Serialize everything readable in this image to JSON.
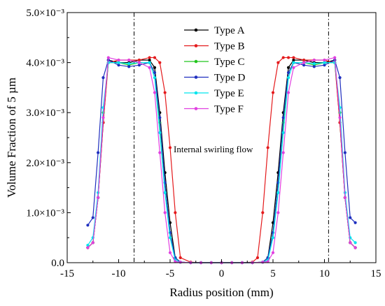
{
  "chart_data": {
    "type": "line",
    "title": "",
    "xlabel": "Radius position (mm)",
    "ylabel": "Volume Fraction of 5 µm",
    "xlim": [
      -15,
      15
    ],
    "ylim": [
      0,
      0.005
    ],
    "x_ticks": [
      -15,
      -10,
      -5,
      0,
      5,
      10,
      15
    ],
    "x_tick_labels": [
      "-15",
      "-10",
      "-5",
      "0",
      "5",
      "10",
      "15"
    ],
    "y_ticks": [
      0,
      0.001,
      0.002,
      0.003,
      0.004,
      0.005
    ],
    "y_tick_labels": [
      "0.0",
      "1.0×10⁻³",
      "2.0×10⁻³",
      "3.0×10⁻³",
      "4.0×10⁻³",
      "5.0×10⁻³"
    ],
    "grid": false,
    "legend_position": "top-center",
    "vlines": [
      -8.5,
      10.4
    ],
    "annotation": "Internal swirling flow",
    "series": [
      {
        "name": "Type A",
        "color": "#000000",
        "x": [
          -13,
          -12.5,
          -12,
          -11.5,
          -11,
          -10,
          -9,
          -8,
          -7,
          -6.5,
          -6,
          -5.5,
          -5,
          -4.5,
          -4,
          -3,
          -2,
          -1,
          0,
          1,
          2,
          3,
          4,
          4.5,
          5,
          5.5,
          6,
          6.5,
          7,
          8,
          9,
          10,
          11,
          11.5,
          12,
          12.5,
          13
        ],
        "y": [
          0.0003,
          0.0004,
          0.0013,
          0.0028,
          0.00405,
          0.004,
          0.004,
          0.00405,
          0.00405,
          0.0039,
          0.003,
          0.0018,
          0.0008,
          0.0001,
          1e-05,
          0,
          0,
          0,
          0,
          0,
          0,
          0,
          1e-05,
          0.0001,
          0.0008,
          0.0018,
          0.003,
          0.0039,
          0.00405,
          0.00405,
          0.004,
          0.004,
          0.00405,
          0.0028,
          0.0013,
          0.0004,
          0.0003
        ]
      },
      {
        "name": "Type B",
        "color": "#e41a1c",
        "x": [
          -13,
          -12.5,
          -12,
          -11.5,
          -11,
          -10,
          -9,
          -8,
          -7,
          -6.5,
          -6,
          -5.5,
          -5,
          -4.5,
          -4,
          -3,
          -2,
          -1,
          0,
          1,
          2,
          3,
          3.5,
          4,
          4.5,
          5,
          5.5,
          6,
          6.5,
          7,
          8,
          9,
          10,
          11,
          11.5,
          12,
          12.5,
          13
        ],
        "y": [
          0.0003,
          0.0004,
          0.0013,
          0.0028,
          0.004,
          0.00405,
          0.00405,
          0.00405,
          0.0041,
          0.0041,
          0.004,
          0.0034,
          0.0023,
          0.001,
          0.0001,
          1e-05,
          0,
          0,
          0,
          0,
          0,
          1e-05,
          0.0001,
          0.001,
          0.0023,
          0.0034,
          0.004,
          0.0041,
          0.0041,
          0.0041,
          0.00405,
          0.00405,
          0.00405,
          0.004,
          0.0028,
          0.0013,
          0.0004,
          0.0003
        ]
      },
      {
        "name": "Type C",
        "color": "#22c51d",
        "x": [
          -13,
          -12.5,
          -12,
          -11.5,
          -11,
          -10,
          -9,
          -8,
          -7,
          -6.5,
          -6,
          -5.5,
          -5,
          -4.5,
          -4,
          -3,
          -2,
          -1,
          0,
          1,
          2,
          3,
          4,
          4.5,
          5,
          5.5,
          6,
          6.5,
          7,
          8,
          9,
          10,
          11,
          11.5,
          12,
          12.5,
          13
        ],
        "y": [
          0.0003,
          0.0004,
          0.0013,
          0.003,
          0.004,
          0.004,
          0.00395,
          0.004,
          0.004,
          0.0038,
          0.0028,
          0.0016,
          0.0006,
          0.0001,
          1e-05,
          0,
          0,
          0,
          0,
          0,
          0,
          0,
          1e-05,
          0.0001,
          0.0006,
          0.0016,
          0.0028,
          0.0038,
          0.004,
          0.004,
          0.00395,
          0.004,
          0.004,
          0.003,
          0.0013,
          0.0004,
          0.0003
        ]
      },
      {
        "name": "Type D",
        "color": "#1f2fbf",
        "x": [
          -13,
          -12.5,
          -12,
          -11.5,
          -11,
          -10,
          -9,
          -8,
          -7,
          -6.5,
          -6,
          -5.5,
          -5,
          -4.5,
          -4,
          -3,
          -2,
          -1,
          0,
          1,
          2,
          3,
          4,
          4.5,
          5,
          5.5,
          6,
          6.5,
          7,
          8,
          9,
          10,
          11,
          11.5,
          12,
          12.5,
          13
        ],
        "y": [
          0.00075,
          0.0009,
          0.0022,
          0.0037,
          0.00405,
          0.00395,
          0.00392,
          0.00395,
          0.004,
          0.0038,
          0.0029,
          0.0016,
          0.0006,
          0.0001,
          1e-05,
          0,
          0,
          0,
          0,
          0,
          0,
          0,
          1e-05,
          0.0001,
          0.0006,
          0.0016,
          0.0029,
          0.0038,
          0.004,
          0.00395,
          0.00392,
          0.00395,
          0.00405,
          0.0037,
          0.0022,
          0.0009,
          0.0008
        ]
      },
      {
        "name": "Type E",
        "color": "#00e5ee",
        "x": [
          -13,
          -12.5,
          -12,
          -11.5,
          -11,
          -10,
          -9,
          -8,
          -7,
          -6.5,
          -6,
          -5.5,
          -5,
          -4.5,
          -4,
          -3,
          -2,
          -1,
          0,
          1,
          2,
          3,
          4,
          4.5,
          5,
          5.5,
          6,
          6.5,
          7,
          8,
          9,
          10,
          11,
          11.5,
          12,
          12.5,
          13
        ],
        "y": [
          0.00035,
          0.0005,
          0.0014,
          0.0031,
          0.004,
          0.004,
          0.00398,
          0.004,
          0.004,
          0.0037,
          0.0026,
          0.0014,
          0.0005,
          5e-05,
          1e-05,
          0,
          0,
          0,
          0,
          0,
          0,
          0,
          1e-05,
          5e-05,
          0.0005,
          0.0014,
          0.0026,
          0.0037,
          0.004,
          0.004,
          0.00398,
          0.004,
          0.004,
          0.0031,
          0.0014,
          0.0005,
          0.0004
        ]
      },
      {
        "name": "Type F",
        "color": "#e040e0",
        "x": [
          -13,
          -12.5,
          -12,
          -11.5,
          -11,
          -10,
          -9,
          -8,
          -7,
          -6.5,
          -6,
          -5.5,
          -5,
          -4.5,
          -4,
          -3,
          -2,
          -1,
          0,
          1,
          2,
          3,
          4,
          4.5,
          5,
          5.5,
          6,
          6.5,
          7,
          8,
          9,
          10,
          11,
          11.5,
          12,
          12.5,
          13
        ],
        "y": [
          0.0003,
          0.0004,
          0.0013,
          0.0029,
          0.0041,
          0.00405,
          0.00405,
          0.004,
          0.0039,
          0.0034,
          0.0022,
          0.001,
          0.0002,
          2e-05,
          1e-05,
          0,
          0,
          0,
          0,
          0,
          0,
          0,
          1e-05,
          2e-05,
          0.0002,
          0.001,
          0.0022,
          0.0034,
          0.0039,
          0.004,
          0.00405,
          0.00405,
          0.0041,
          0.0029,
          0.0013,
          0.0004,
          0.0003
        ]
      }
    ]
  }
}
